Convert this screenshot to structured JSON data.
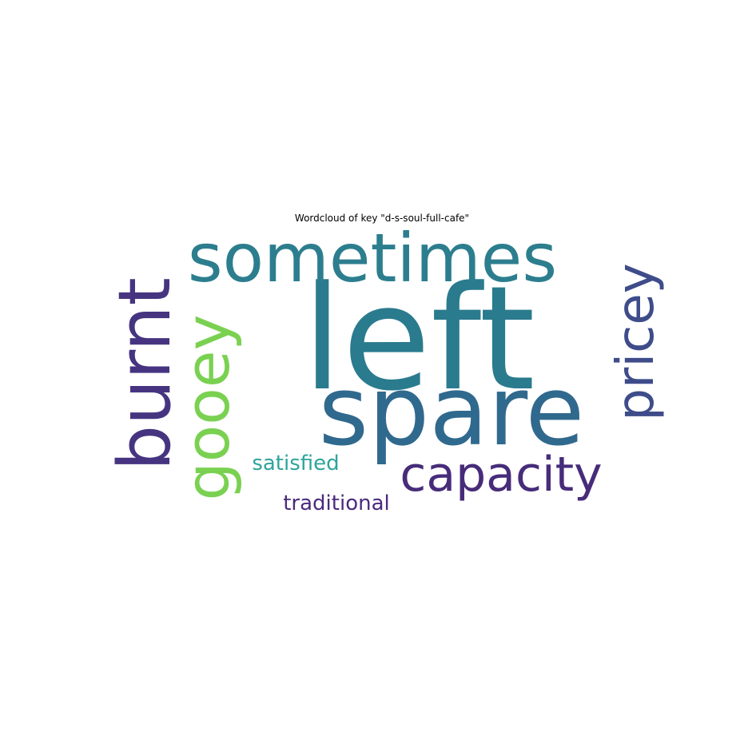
{
  "chart_data": {
    "type": "wordcloud",
    "title": "Wordcloud of key \"d-s-soul-full-cafe\"",
    "words": [
      {
        "text": "left",
        "weight": 1.0,
        "color": "#2a7b8e",
        "orientation": "horizontal"
      },
      {
        "text": "spare",
        "weight": 0.82,
        "color": "#30698e",
        "orientation": "horizontal"
      },
      {
        "text": "sometimes",
        "weight": 0.62,
        "color": "#2c7e8e",
        "orientation": "horizontal"
      },
      {
        "text": "burnt",
        "weight": 0.58,
        "color": "#463480",
        "orientation": "vertical"
      },
      {
        "text": "gooey",
        "weight": 0.5,
        "color": "#7ad151",
        "orientation": "vertical"
      },
      {
        "text": "pricey",
        "weight": 0.44,
        "color": "#3e4c8a",
        "orientation": "vertical"
      },
      {
        "text": "capacity",
        "weight": 0.42,
        "color": "#472c7a",
        "orientation": "horizontal"
      },
      {
        "text": "satisfied",
        "weight": 0.22,
        "color": "#2ea49c",
        "orientation": "horizontal"
      },
      {
        "text": "traditional",
        "weight": 0.22,
        "color": "#4b2a7e",
        "orientation": "horizontal"
      }
    ]
  }
}
